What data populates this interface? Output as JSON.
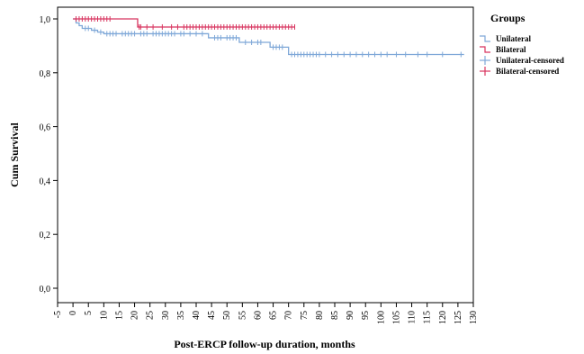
{
  "chart_data": {
    "type": "line",
    "xlabel": "Post-ERCP  follow-up duration, months",
    "ylabel": "Cum Survival",
    "xlim": [
      -5,
      130
    ],
    "ylim": [
      0,
      1.0
    ],
    "x_ticks": [
      "-5",
      "0",
      "5",
      "10",
      "15",
      "20",
      "25",
      "30",
      "35",
      "40",
      "45",
      "50",
      "55",
      "60",
      "65",
      "70",
      "75",
      "80",
      "85",
      "90",
      "95",
      "100",
      "105",
      "110",
      "115",
      "120",
      "125",
      "130"
    ],
    "x_tick_values": [
      -5,
      0,
      5,
      10,
      15,
      20,
      25,
      30,
      35,
      40,
      45,
      50,
      55,
      60,
      65,
      70,
      75,
      80,
      85,
      90,
      95,
      100,
      105,
      110,
      115,
      120,
      125,
      130
    ],
    "y_ticks": [
      "0,0",
      "0,2",
      "0,4",
      "0,6",
      "0,8",
      "1,0"
    ],
    "y_tick_values": [
      0,
      0.2,
      0.4,
      0.6,
      0.8,
      1.0
    ],
    "grid": false,
    "legend": {
      "title": "Groups",
      "placement": "top-right",
      "entries": [
        {
          "label": "Unilateral",
          "color": "#7fa8d8",
          "kind": "step"
        },
        {
          "label": "Bilateral",
          "color": "#d8345f",
          "kind": "step"
        },
        {
          "label": "Unilateral-censored",
          "color": "#7fa8d8",
          "kind": "censor"
        },
        {
          "label": "Bilateral-censored",
          "color": "#d8345f",
          "kind": "censor"
        }
      ]
    },
    "series": [
      {
        "name": "Unilateral",
        "color": "#7fa8d8",
        "steps": [
          [
            0,
            1.0
          ],
          [
            1,
            0.985
          ],
          [
            2,
            0.975
          ],
          [
            3,
            0.965
          ],
          [
            6,
            0.958
          ],
          [
            8,
            0.951
          ],
          [
            10,
            0.945
          ],
          [
            44,
            0.93
          ],
          [
            54,
            0.913
          ],
          [
            64,
            0.895
          ],
          [
            70,
            0.868
          ],
          [
            127,
            0.868
          ]
        ],
        "censored": [
          4,
          5,
          7,
          9,
          11,
          12,
          13,
          14,
          16,
          17,
          18,
          19,
          20,
          22,
          23,
          24,
          26,
          27,
          28,
          29,
          30,
          31,
          32,
          33,
          35,
          36,
          38,
          40,
          42,
          46,
          47,
          48,
          50,
          51,
          52,
          53,
          56,
          58,
          60,
          61,
          65,
          66,
          67,
          68,
          71,
          72,
          73,
          74,
          75,
          76,
          77,
          78,
          79,
          80,
          82,
          84,
          86,
          88,
          90,
          92,
          94,
          96,
          98,
          100,
          102,
          105,
          108,
          112,
          115,
          120,
          126
        ]
      },
      {
        "name": "Bilateral",
        "color": "#d8345f",
        "steps": [
          [
            0,
            1.0
          ],
          [
            21,
            0.97
          ],
          [
            72,
            0.97
          ]
        ],
        "censored": [
          1,
          2,
          3,
          4,
          5,
          6,
          7,
          8,
          9,
          10,
          11,
          12,
          21.5,
          22,
          24,
          26,
          29,
          32,
          34,
          36,
          37,
          38,
          39,
          40,
          41,
          42,
          43,
          44,
          45,
          46,
          47,
          48,
          49,
          50,
          51,
          52,
          53,
          54,
          55,
          56,
          57,
          58,
          59,
          60,
          61,
          62,
          63,
          64,
          65,
          66,
          67,
          68,
          69,
          70,
          71,
          72
        ]
      }
    ]
  }
}
